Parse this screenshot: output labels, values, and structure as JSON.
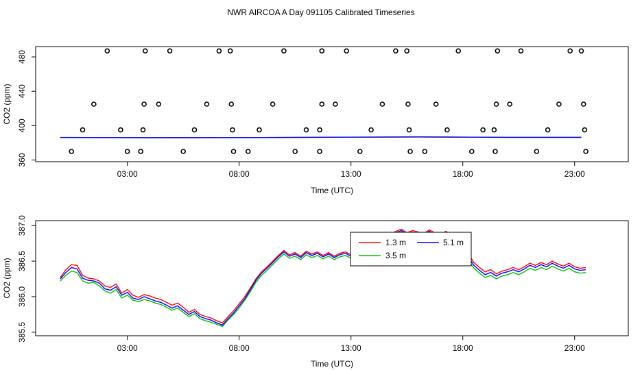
{
  "title": "NWR AIRCOA A  Day 091105  Calibrated Timeseries",
  "chart_data": [
    {
      "type": "scatter",
      "xlabel": "Time (UTC)",
      "ylabel": "CO2 (ppm)",
      "xlim": [
        -1.1,
        25.4
      ],
      "ylim": [
        358,
        492
      ],
      "xticks": [
        3,
        8,
        13,
        18,
        23
      ],
      "xtick_labels": [
        "03:00",
        "08:00",
        "13:00",
        "18:00",
        "23:00"
      ],
      "yticks": [
        360,
        400,
        440,
        480
      ],
      "ytick_labels": [
        "360",
        "400",
        "440",
        "480"
      ],
      "grid": false,
      "legend": "none",
      "markers": [
        {
          "x": 0.5,
          "y": 370
        },
        {
          "x": 1.0,
          "y": 395
        },
        {
          "x": 1.5,
          "y": 425
        },
        {
          "x": 2.1,
          "y": 487
        },
        {
          "x": 2.7,
          "y": 395
        },
        {
          "x": 3.0,
          "y": 370
        },
        {
          "x": 3.6,
          "y": 370
        },
        {
          "x": 3.7,
          "y": 395
        },
        {
          "x": 3.75,
          "y": 425
        },
        {
          "x": 3.8,
          "y": 487
        },
        {
          "x": 4.4,
          "y": 425
        },
        {
          "x": 4.9,
          "y": 487
        },
        {
          "x": 5.5,
          "y": 370
        },
        {
          "x": 6.0,
          "y": 395
        },
        {
          "x": 6.55,
          "y": 425
        },
        {
          "x": 7.1,
          "y": 487
        },
        {
          "x": 7.6,
          "y": 487
        },
        {
          "x": 7.65,
          "y": 425
        },
        {
          "x": 7.7,
          "y": 395
        },
        {
          "x": 7.75,
          "y": 370
        },
        {
          "x": 8.4,
          "y": 370
        },
        {
          "x": 8.9,
          "y": 395
        },
        {
          "x": 9.5,
          "y": 425
        },
        {
          "x": 10.0,
          "y": 487
        },
        {
          "x": 10.5,
          "y": 370
        },
        {
          "x": 11.0,
          "y": 395
        },
        {
          "x": 11.6,
          "y": 370
        },
        {
          "x": 11.6,
          "y": 395
        },
        {
          "x": 11.7,
          "y": 425
        },
        {
          "x": 11.7,
          "y": 487
        },
        {
          "x": 12.3,
          "y": 425
        },
        {
          "x": 12.8,
          "y": 487
        },
        {
          "x": 13.4,
          "y": 370
        },
        {
          "x": 13.9,
          "y": 395
        },
        {
          "x": 14.4,
          "y": 425
        },
        {
          "x": 15.0,
          "y": 487
        },
        {
          "x": 15.5,
          "y": 487
        },
        {
          "x": 15.55,
          "y": 425
        },
        {
          "x": 15.6,
          "y": 395
        },
        {
          "x": 15.65,
          "y": 370
        },
        {
          "x": 16.3,
          "y": 370
        },
        {
          "x": 16.8,
          "y": 425
        },
        {
          "x": 17.3,
          "y": 395
        },
        {
          "x": 17.8,
          "y": 487
        },
        {
          "x": 18.4,
          "y": 370
        },
        {
          "x": 18.9,
          "y": 395
        },
        {
          "x": 19.4,
          "y": 395
        },
        {
          "x": 19.45,
          "y": 370
        },
        {
          "x": 19.5,
          "y": 425
        },
        {
          "x": 19.55,
          "y": 487
        },
        {
          "x": 20.1,
          "y": 425
        },
        {
          "x": 20.6,
          "y": 487
        },
        {
          "x": 21.3,
          "y": 370
        },
        {
          "x": 21.8,
          "y": 395
        },
        {
          "x": 22.3,
          "y": 425
        },
        {
          "x": 22.8,
          "y": 487
        },
        {
          "x": 23.3,
          "y": 487
        },
        {
          "x": 23.4,
          "y": 425
        },
        {
          "x": 23.45,
          "y": 395
        },
        {
          "x": 23.5,
          "y": 370
        }
      ],
      "series": [
        {
          "color": "#ff0000",
          "x": [
            0,
            4,
            8,
            12,
            16,
            20,
            23.3
          ],
          "y": [
            386.1,
            386.0,
            386.1,
            386.5,
            386.8,
            386.4,
            386.4
          ]
        },
        {
          "color": "#00c000",
          "x": [
            0,
            4,
            8,
            12,
            16,
            20,
            23.3
          ],
          "y": [
            386.1,
            385.9,
            386.0,
            386.4,
            386.8,
            386.3,
            386.3
          ]
        },
        {
          "color": "#0000ff",
          "x": [
            0,
            4,
            8,
            12,
            16,
            20,
            23.3
          ],
          "y": [
            386.2,
            386.0,
            386.1,
            386.5,
            386.9,
            386.4,
            386.4
          ]
        }
      ]
    },
    {
      "type": "line",
      "xlabel": "Time (UTC)",
      "ylabel": "CO2 (ppm)",
      "xlim": [
        -1.1,
        25.4
      ],
      "ylim": [
        385.45,
        387.07
      ],
      "xticks": [
        3,
        8,
        13,
        18,
        23
      ],
      "xtick_labels": [
        "03:00",
        "08:00",
        "13:00",
        "18:00",
        "23:00"
      ],
      "yticks": [
        385.5,
        386.0,
        386.5,
        387.0
      ],
      "ytick_labels": [
        "385.5",
        "386.0",
        "386.5",
        "387.0"
      ],
      "grid": false,
      "legend": "top-center",
      "x": [
        0.0,
        0.25,
        0.5,
        0.75,
        1.0,
        1.25,
        1.5,
        1.75,
        2.0,
        2.25,
        2.5,
        2.75,
        3.0,
        3.25,
        3.5,
        3.75,
        4.0,
        4.25,
        4.5,
        4.75,
        5.0,
        5.25,
        5.5,
        5.75,
        6.0,
        6.25,
        6.5,
        6.75,
        7.0,
        7.25,
        7.5,
        7.75,
        8.0,
        8.25,
        8.5,
        8.75,
        9.0,
        9.25,
        9.5,
        9.75,
        10.0,
        10.25,
        10.5,
        10.75,
        11.0,
        11.25,
        11.5,
        11.75,
        12.0,
        12.25,
        12.5,
        12.75,
        13.0,
        13.25,
        13.5,
        13.75,
        14.0,
        14.25,
        14.5,
        14.75,
        15.0,
        15.25,
        15.5,
        15.75,
        16.0,
        16.25,
        16.5,
        16.75,
        17.0,
        17.25,
        17.5,
        17.75,
        18.0,
        18.25,
        18.5,
        18.75,
        19.0,
        19.25,
        19.5,
        19.75,
        20.0,
        20.25,
        20.5,
        20.75,
        21.0,
        21.25,
        21.5,
        21.75,
        22.0,
        22.25,
        22.5,
        22.75,
        23.0,
        23.25,
        23.5
      ],
      "series": [
        {
          "name": "1.3 m",
          "color": "#ff0000",
          "values": [
            386.27,
            386.38,
            386.45,
            386.44,
            386.3,
            386.26,
            386.25,
            386.22,
            386.15,
            386.13,
            386.18,
            386.05,
            386.1,
            386.02,
            385.99,
            386.03,
            386.01,
            385.98,
            385.96,
            385.92,
            385.88,
            385.91,
            385.85,
            385.78,
            385.82,
            385.75,
            385.72,
            385.7,
            385.66,
            385.63,
            385.72,
            385.8,
            385.9,
            386.0,
            386.12,
            386.25,
            386.35,
            386.42,
            386.5,
            386.58,
            386.65,
            386.59,
            386.62,
            386.57,
            386.64,
            386.6,
            386.63,
            386.58,
            386.62,
            386.57,
            386.61,
            386.63,
            386.59,
            386.66,
            386.62,
            386.69,
            386.74,
            386.78,
            386.83,
            386.88,
            386.92,
            386.95,
            386.9,
            386.93,
            386.91,
            386.89,
            386.94,
            386.9,
            386.88,
            386.92,
            386.86,
            386.8,
            386.72,
            386.6,
            386.48,
            386.41,
            386.35,
            386.38,
            386.32,
            386.36,
            386.38,
            386.41,
            386.38,
            386.42,
            386.47,
            386.44,
            386.48,
            386.45,
            386.5,
            386.46,
            386.43,
            386.47,
            386.42,
            386.4,
            386.41
          ]
        },
        {
          "name": "3.5 m",
          "color": "#00c000",
          "values": [
            386.22,
            386.3,
            386.36,
            386.34,
            386.22,
            386.19,
            386.2,
            386.15,
            386.08,
            386.05,
            386.1,
            385.98,
            386.02,
            385.95,
            385.93,
            385.96,
            385.94,
            385.91,
            385.89,
            385.85,
            385.81,
            385.84,
            385.78,
            385.72,
            385.76,
            385.69,
            385.66,
            385.64,
            385.61,
            385.58,
            385.67,
            385.75,
            385.84,
            385.95,
            386.07,
            386.2,
            386.3,
            386.37,
            386.45,
            386.53,
            386.6,
            386.54,
            386.57,
            386.52,
            386.59,
            386.55,
            386.58,
            386.53,
            386.57,
            386.52,
            386.56,
            386.58,
            386.54,
            386.61,
            386.57,
            386.64,
            386.7,
            386.74,
            386.79,
            386.84,
            386.88,
            386.91,
            386.86,
            386.89,
            386.87,
            386.85,
            386.9,
            386.86,
            386.84,
            386.88,
            386.81,
            386.75,
            386.65,
            386.52,
            386.4,
            386.33,
            386.27,
            386.3,
            386.25,
            386.29,
            386.31,
            386.34,
            386.31,
            386.35,
            386.4,
            386.37,
            386.41,
            386.38,
            386.43,
            386.39,
            386.36,
            386.4,
            386.35,
            386.33,
            386.34
          ]
        },
        {
          "name": "5.1 m",
          "color": "#0000ff",
          "values": [
            386.25,
            386.34,
            386.41,
            386.39,
            386.26,
            386.23,
            386.22,
            386.19,
            386.11,
            386.09,
            386.14,
            386.02,
            386.06,
            385.98,
            385.96,
            386.0,
            385.97,
            385.94,
            385.92,
            385.88,
            385.84,
            385.87,
            385.81,
            385.75,
            385.79,
            385.72,
            385.69,
            385.67,
            385.63,
            385.6,
            385.69,
            385.77,
            385.87,
            385.97,
            386.1,
            386.23,
            386.33,
            386.4,
            386.48,
            386.56,
            386.63,
            386.57,
            386.6,
            386.55,
            386.62,
            386.58,
            386.61,
            386.56,
            386.6,
            386.55,
            386.59,
            386.61,
            386.57,
            386.64,
            386.6,
            386.67,
            386.72,
            386.76,
            386.81,
            386.86,
            386.9,
            386.93,
            386.88,
            386.91,
            386.89,
            386.87,
            386.92,
            386.88,
            386.86,
            386.9,
            386.84,
            386.78,
            386.69,
            386.56,
            386.44,
            386.37,
            386.31,
            386.34,
            386.29,
            386.33,
            386.35,
            386.38,
            386.35,
            386.39,
            386.44,
            386.41,
            386.45,
            386.42,
            386.47,
            386.43,
            386.4,
            386.44,
            386.39,
            386.37,
            386.38
          ]
        }
      ]
    }
  ]
}
